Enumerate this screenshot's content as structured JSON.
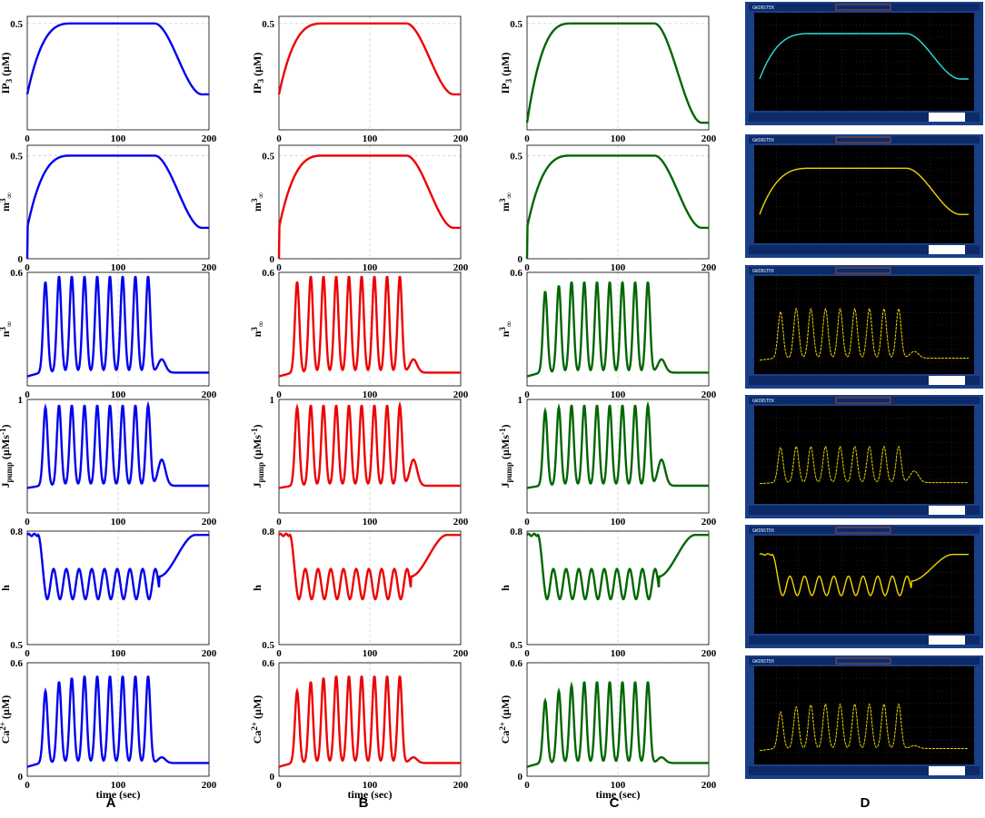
{
  "colors": {
    "A": "#0000ee",
    "B": "#ee0000",
    "C": "#006600",
    "scope_cyan": "#33dddd",
    "scope_yellow": "#f2d400",
    "scope_frame": "#1a3f86",
    "scope_screen": "#000000"
  },
  "column_labels": [
    "A",
    "B",
    "C",
    "D"
  ],
  "scope_header": {
    "brand": "GWINSTEK"
  },
  "xlabel": "time (sec)",
  "chart_data": [
    {
      "type": "line",
      "id": "ip3",
      "ylabel_parts": [
        "IP",
        "3",
        " (µM)"
      ],
      "xlim": [
        0,
        200
      ],
      "xticks": [
        0,
        100,
        200
      ],
      "yticks": {
        "A": [
          0.5
        ],
        "B": [
          0.5
        ],
        "C": [
          0.5
        ]
      },
      "ylim": [
        0.2,
        0.52
      ],
      "description_series": {
        "A": {
          "base": 0.3,
          "plateau": 0.5,
          "t_rise_end": 50,
          "t_fall_start": 140,
          "t_end": 200,
          "end": 0.3
        },
        "B": {
          "base": 0.3,
          "plateau": 0.5,
          "t_rise_end": 50,
          "t_fall_start": 140,
          "t_end": 200,
          "end": 0.3
        },
        "C": {
          "base": 0.22,
          "plateau": 0.5,
          "t_rise_end": 50,
          "t_fall_start": 140,
          "t_end": 200,
          "end": 0.22
        }
      }
    },
    {
      "type": "line",
      "id": "m3",
      "ylabel_parts": [
        "m",
        "3",
        "∞"
      ],
      "xlim": [
        0,
        200
      ],
      "xticks": [
        0,
        100,
        200
      ],
      "yticks": {
        "A": [
          0,
          0.5
        ],
        "B": [
          0,
          0.5
        ],
        "C": [
          0,
          0.5
        ]
      },
      "ylim": [
        0,
        0.55
      ],
      "description_series": {
        "A": {
          "base": 0.15,
          "plateau": 0.5,
          "end": 0.15
        },
        "B": {
          "base": 0.15,
          "plateau": 0.5,
          "end": 0.15
        },
        "C": {
          "base": 0.15,
          "plateau": 0.5,
          "end": 0.15
        }
      }
    },
    {
      "type": "line",
      "id": "n3",
      "ylabel_parts": [
        "n",
        "3",
        "∞"
      ],
      "xlim": [
        0,
        200
      ],
      "xticks": [
        0,
        100,
        200
      ],
      "yticks": {
        "A": [
          0.6
        ],
        "B": [
          0.6
        ],
        "C": [
          0.6
        ]
      },
      "ylim": [
        0,
        0.6
      ],
      "description_series": {
        "A": {
          "base": 0.05,
          "peaks": [
            0.55,
            0.58,
            0.58,
            0.58,
            0.58,
            0.58,
            0.58,
            0.58,
            0.58
          ],
          "tail_bump": 0.12
        },
        "B": {
          "base": 0.05,
          "peaks": [
            0.55,
            0.58,
            0.58,
            0.58,
            0.58,
            0.58,
            0.58,
            0.58,
            0.58
          ],
          "tail_bump": 0.12
        },
        "C": {
          "base": 0.05,
          "peaks": [
            0.5,
            0.53,
            0.55,
            0.55,
            0.55,
            0.55,
            0.55,
            0.55,
            0.55
          ],
          "tail_bump": 0.12
        }
      }
    },
    {
      "type": "line",
      "id": "jpump",
      "ylabel_parts": [
        "J",
        "pump",
        " (µMs",
        "-1",
        ")"
      ],
      "xlim": [
        0,
        200
      ],
      "xticks": [
        0,
        100,
        200
      ],
      "yticks": {
        "A": [
          1
        ],
        "B": [
          1
        ],
        "C": [
          1
        ]
      },
      "ylim": [
        0,
        1
      ],
      "description_series": {
        "A": {
          "base": 0.22,
          "peaks": [
            0.93,
            0.95,
            0.95,
            0.95,
            0.95,
            0.95,
            0.95,
            0.95,
            0.95
          ],
          "tail_bump": 0.45
        },
        "B": {
          "base": 0.22,
          "peaks": [
            0.93,
            0.95,
            0.95,
            0.95,
            0.95,
            0.95,
            0.95,
            0.95,
            0.95
          ],
          "tail_bump": 0.45
        },
        "C": {
          "base": 0.22,
          "peaks": [
            0.9,
            0.93,
            0.95,
            0.95,
            0.95,
            0.95,
            0.95,
            0.95,
            0.95
          ],
          "tail_bump": 0.45
        }
      }
    },
    {
      "type": "line",
      "id": "h",
      "ylabel_parts": [
        "h"
      ],
      "xlim": [
        0,
        200
      ],
      "xticks": [
        0,
        100,
        200
      ],
      "yticks": {
        "A": [
          0.5,
          0.8
        ],
        "B": [
          0.5,
          0.8
        ],
        "C": [
          0.5,
          0.8
        ]
      },
      "ylim": [
        0.5,
        0.8
      ],
      "description_series": {
        "A": {
          "start": 0.79,
          "trough": 0.62,
          "peak": 0.7,
          "end": 0.79
        },
        "B": {
          "start": 0.79,
          "trough": 0.62,
          "peak": 0.7,
          "end": 0.79
        },
        "C": {
          "start": 0.79,
          "trough": 0.62,
          "peak": 0.7,
          "end": 0.79
        }
      }
    },
    {
      "type": "line",
      "id": "ca",
      "ylabel_parts": [
        "Ca",
        "2+",
        " (µM)"
      ],
      "xlim": [
        0,
        200
      ],
      "xticks": [
        0,
        100,
        200
      ],
      "yticks": {
        "A": [
          0,
          0.6
        ],
        "B": [
          0,
          0.6
        ],
        "C": [
          0,
          0.6
        ]
      },
      "ylim": [
        0,
        0.6
      ],
      "description_series": {
        "A": {
          "base": 0.05,
          "peaks": [
            0.45,
            0.5,
            0.52,
            0.53,
            0.53,
            0.53,
            0.53,
            0.53,
            0.53
          ],
          "tail_bump": 0.08
        },
        "B": {
          "base": 0.05,
          "peaks": [
            0.45,
            0.5,
            0.52,
            0.53,
            0.53,
            0.53,
            0.53,
            0.53,
            0.53
          ],
          "tail_bump": 0.08
        },
        "C": {
          "base": 0.05,
          "peaks": [
            0.4,
            0.45,
            0.48,
            0.5,
            0.5,
            0.5,
            0.5,
            0.5,
            0.5
          ],
          "tail_bump": 0.08
        }
      }
    }
  ]
}
